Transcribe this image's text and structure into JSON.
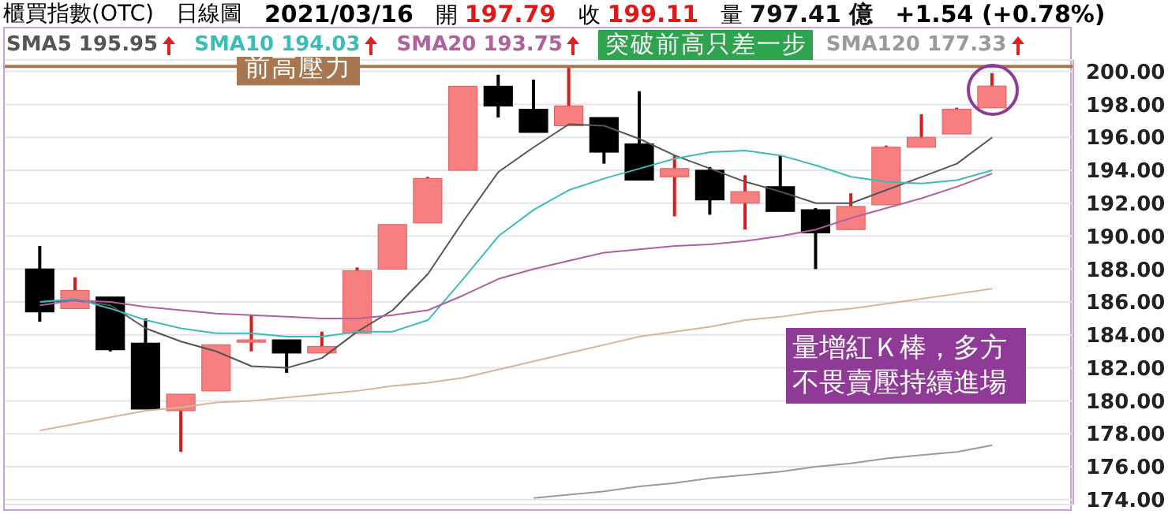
{
  "chart_data": {
    "type": "candlestick",
    "annotations": [
      "櫃買指數(OTC)",
      "日線圖",
      "2021/03/16",
      "開 197.79",
      "收 199.11",
      "量 797.41 億",
      "+1.54 (+0.78%)",
      "突破前高只差一步",
      "量增紅Ｋ棒，多方不畏賣壓持續進場"
    ],
    "categories": [
      null,
      null,
      null,
      null,
      null,
      null,
      null,
      null,
      null,
      null,
      null,
      null,
      null,
      null,
      null,
      null,
      null,
      null,
      null,
      null,
      null,
      null,
      null,
      null,
      null,
      null,
      null,
      null
    ],
    "ohlc": [
      [
        188.0,
        189.4,
        184.8,
        185.4
      ],
      [
        185.6,
        187.5,
        185.6,
        186.7
      ],
      [
        186.3,
        186.3,
        183.0,
        183.1
      ],
      [
        183.5,
        185.0,
        179.5,
        179.5
      ],
      [
        179.4,
        180.4,
        176.9,
        180.4
      ],
      [
        180.6,
        183.4,
        180.6,
        183.4
      ],
      [
        183.6,
        185.2,
        183.0,
        183.7
      ],
      [
        183.7,
        183.7,
        181.7,
        182.9
      ],
      [
        182.9,
        184.2,
        182.9,
        183.3
      ],
      [
        184.1,
        188.1,
        184.1,
        187.9
      ],
      [
        188.0,
        190.7,
        188.0,
        190.7
      ],
      [
        190.8,
        193.6,
        190.8,
        193.5
      ],
      [
        194.0,
        199.1,
        194.0,
        199.1
      ],
      [
        199.1,
        199.8,
        197.2,
        197.9
      ],
      [
        197.7,
        199.5,
        196.3,
        196.3
      ],
      [
        196.7,
        200.3,
        196.7,
        197.9
      ],
      [
        197.2,
        197.2,
        194.4,
        195.1
      ],
      [
        195.6,
        198.8,
        193.4,
        193.4
      ],
      [
        193.6,
        194.9,
        191.2,
        194.1
      ],
      [
        194.0,
        194.2,
        191.3,
        192.2
      ],
      [
        192.0,
        193.7,
        190.4,
        192.7
      ],
      [
        193.0,
        194.9,
        191.5,
        191.5
      ],
      [
        191.6,
        191.7,
        188.0,
        190.2
      ],
      [
        190.4,
        192.6,
        190.4,
        191.8
      ],
      [
        191.9,
        195.5,
        191.9,
        195.4
      ],
      [
        195.4,
        197.4,
        195.4,
        196.0
      ],
      [
        196.2,
        197.8,
        196.2,
        197.7
      ],
      [
        197.79,
        199.9,
        197.79,
        199.11
      ]
    ],
    "colors": [
      "#000000",
      "#f87f80",
      "#000000",
      "#000000",
      "#f87f80",
      "#f87f80",
      "#f87f80",
      "#000000",
      "#f87f80",
      "#f87f80",
      "#f87f80",
      "#f87f80",
      "#f87f80",
      "#000000",
      "#000000",
      "#f87f80",
      "#000000",
      "#000000",
      "#f87f80",
      "#000000",
      "#f87f80",
      "#000000",
      "#000000",
      "#f87f80",
      "#f87f80",
      "#f87f80",
      "#f87f80",
      "#f87f80"
    ],
    "series": [
      {
        "type": "line",
        "name": "SMA5 195.95",
        "color": "#555555",
        "values": [
          186.0,
          186.1,
          185.8,
          184.4,
          183.6,
          183.0,
          182.1,
          182.0,
          182.6,
          184.2,
          185.5,
          187.7,
          190.9,
          193.9,
          195.4,
          196.8,
          196.7,
          195.9,
          194.9,
          194.1,
          193.3,
          192.7,
          192.0,
          192.0,
          192.8,
          193.6,
          194.4,
          196.0
        ]
      },
      {
        "type": "line",
        "name": "SMA10 194.03",
        "color": "#3cbcb6",
        "values": [
          186.0,
          186.2,
          185.6,
          184.9,
          184.4,
          184.1,
          184.1,
          183.9,
          183.9,
          184.2,
          184.2,
          184.9,
          187.4,
          190.0,
          191.6,
          192.8,
          193.5,
          194.1,
          194.7,
          195.1,
          195.2,
          194.9,
          194.3,
          193.6,
          193.3,
          193.2,
          193.4,
          194.0
        ]
      },
      {
        "type": "line",
        "name": "SMA20 193.75",
        "color": "#b0609c",
        "values": [
          185.8,
          186.1,
          186.0,
          185.7,
          185.5,
          185.3,
          185.2,
          185.1,
          185.0,
          185.0,
          185.2,
          185.5,
          186.4,
          187.4,
          188.0,
          188.5,
          189.0,
          189.2,
          189.4,
          189.5,
          189.7,
          190.0,
          190.4,
          191.1,
          191.7,
          192.3,
          193.0,
          193.8
        ]
      },
      {
        "type": "line",
        "color": "#d9b49a",
        "values": [
          178.2,
          178.6,
          179.0,
          179.4,
          179.6,
          179.9,
          180.0,
          180.2,
          180.4,
          180.6,
          180.9,
          181.1,
          181.4,
          181.9,
          182.4,
          182.9,
          183.4,
          183.9,
          184.2,
          184.5,
          184.9,
          185.1,
          185.4,
          185.6,
          185.9,
          186.2,
          186.5,
          186.8
        ]
      },
      {
        "type": "line",
        "name": "SMA120 177.33",
        "color": "#9a9a9a",
        "values": [
          null,
          null,
          null,
          null,
          null,
          null,
          null,
          null,
          null,
          null,
          null,
          null,
          null,
          null,
          174.1,
          174.3,
          174.5,
          174.8,
          175.0,
          175.3,
          175.5,
          175.7,
          176.0,
          176.2,
          176.5,
          176.7,
          176.9,
          177.3
        ]
      }
    ],
    "ylim": [
      173.7,
      200.7
    ],
    "yticks": [
      {
        "value": 174,
        "label": "174.00"
      },
      {
        "value": 176,
        "label": "176.00"
      },
      {
        "value": 178,
        "label": "178.00"
      },
      {
        "value": 180,
        "label": "180.00"
      },
      {
        "value": 182,
        "label": "182.00"
      },
      {
        "value": 184,
        "label": "184.00"
      },
      {
        "value": 186,
        "label": "186.00"
      },
      {
        "value": 188,
        "label": "188.00"
      },
      {
        "value": 190,
        "label": "190.00"
      },
      {
        "value": 192,
        "label": "192.00"
      },
      {
        "value": 194,
        "label": "194.00"
      },
      {
        "value": 196,
        "label": "196.00"
      },
      {
        "value": 198,
        "label": "198.00"
      },
      {
        "value": 200,
        "label": "200.00"
      }
    ],
    "ref_lines": [
      {
        "axis": "y",
        "value": 200.3,
        "label": "前高壓力",
        "color": "#a8774f"
      }
    ],
    "grid": "y",
    "legend": "top",
    "tick_labels": "y"
  }
}
